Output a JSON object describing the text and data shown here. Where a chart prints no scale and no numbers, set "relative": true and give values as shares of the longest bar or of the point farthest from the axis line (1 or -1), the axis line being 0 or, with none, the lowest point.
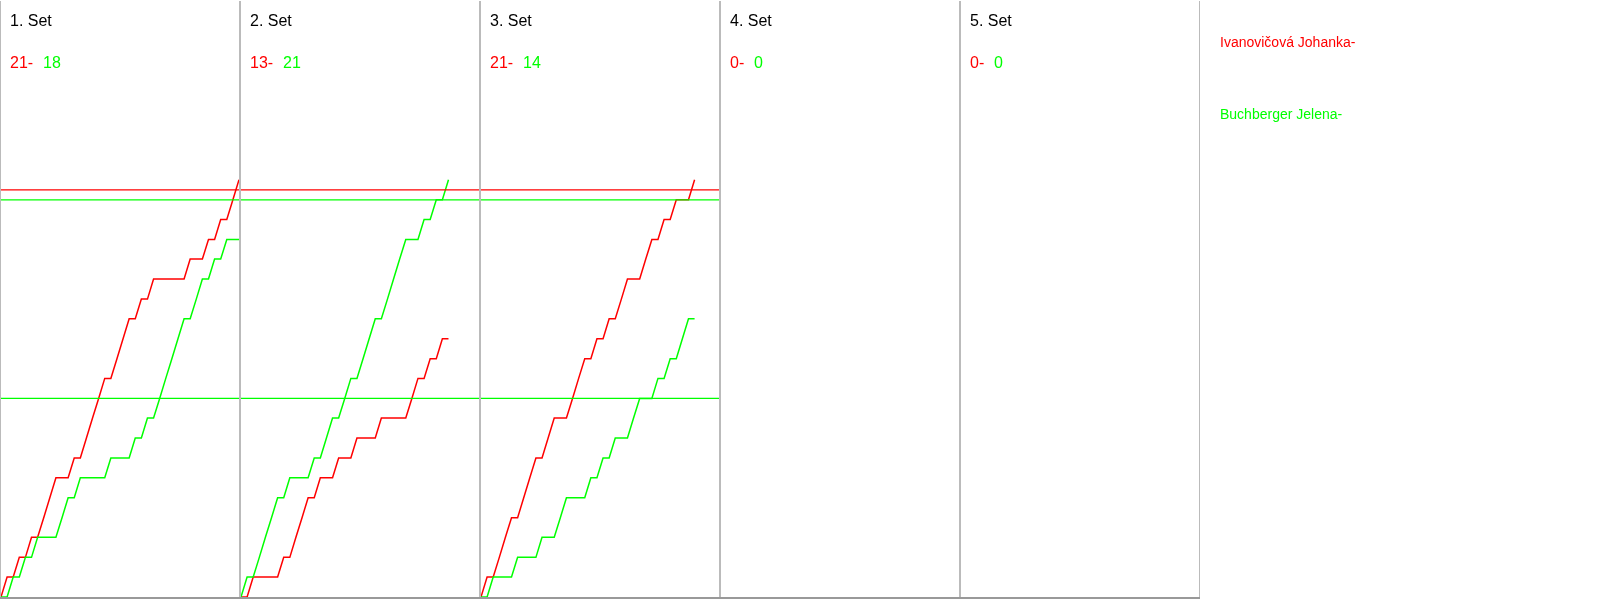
{
  "chart_data": [
    {
      "type": "line",
      "title": "1. Set",
      "annotations": [
        "21-",
        "18"
      ],
      "relative": true,
      "categories": [
        null,
        null,
        null,
        null,
        null,
        null,
        null,
        null,
        null,
        null,
        null,
        null,
        null,
        null,
        null,
        null,
        null,
        null,
        null,
        null,
        null,
        null,
        null,
        null,
        null,
        null,
        null,
        null,
        null,
        null,
        null,
        null,
        null,
        null,
        null,
        null,
        null,
        null,
        null,
        null
      ],
      "ref_lines": [
        {
          "axis": "y",
          "value": 0.976,
          "color": "#ff0000"
        },
        {
          "axis": "y",
          "value": 0.952,
          "color": "#00ff00"
        },
        {
          "axis": "y",
          "value": 0.476,
          "color": "#00ff00"
        }
      ],
      "series": [
        {
          "name": "Ivanovičová Johanka-",
          "color": "#ff0000",
          "values": [
            0,
            0.048,
            0.048,
            0.095,
            0.095,
            0.143,
            0.143,
            0.19,
            0.238,
            0.286,
            0.286,
            0.286,
            0.333,
            0.333,
            0.381,
            0.429,
            0.476,
            0.524,
            0.524,
            0.571,
            0.619,
            0.667,
            0.667,
            0.714,
            0.714,
            0.762,
            0.762,
            0.762,
            0.762,
            0.762,
            0.762,
            0.81,
            0.81,
            0.81,
            0.857,
            0.857,
            0.905,
            0.905,
            0.952,
            1
          ]
        },
        {
          "name": "Buchberger Jelena-",
          "color": "#00ff00",
          "values": [
            0,
            0,
            0.048,
            0.048,
            0.095,
            0.095,
            0.143,
            0.143,
            0.143,
            0.143,
            0.19,
            0.238,
            0.238,
            0.286,
            0.286,
            0.286,
            0.286,
            0.286,
            0.333,
            0.333,
            0.333,
            0.333,
            0.381,
            0.381,
            0.429,
            0.429,
            0.476,
            0.524,
            0.571,
            0.619,
            0.667,
            0.667,
            0.714,
            0.762,
            0.762,
            0.81,
            0.81,
            0.857,
            0.857,
            0.857
          ]
        }
      ]
    },
    {
      "type": "line",
      "title": "2. Set",
      "annotations": [
        "13-",
        "21"
      ],
      "relative": true,
      "categories": [
        null,
        null,
        null,
        null,
        null,
        null,
        null,
        null,
        null,
        null,
        null,
        null,
        null,
        null,
        null,
        null,
        null,
        null,
        null,
        null,
        null,
        null,
        null,
        null,
        null,
        null,
        null,
        null,
        null,
        null,
        null,
        null,
        null,
        null,
        null,
        null,
        null,
        null,
        null,
        null
      ],
      "ref_lines": [
        {
          "axis": "y",
          "value": 0.976,
          "color": "#ff0000"
        },
        {
          "axis": "y",
          "value": 0.952,
          "color": "#00ff00"
        },
        {
          "axis": "y",
          "value": 0.476,
          "color": "#00ff00"
        }
      ],
      "series": [
        {
          "color": "#ff0000",
          "values": [
            0,
            0,
            0.048,
            0.048,
            0.048,
            0.048,
            0.048,
            0.095,
            0.095,
            0.143,
            0.19,
            0.238,
            0.238,
            0.286,
            0.286,
            0.286,
            0.333,
            0.333,
            0.333,
            0.381,
            0.381,
            0.381,
            0.381,
            0.429,
            0.429,
            0.429,
            0.429,
            0.429,
            0.476,
            0.524,
            0.524,
            0.571,
            0.571,
            0.619,
            0.619,
            null,
            null,
            null,
            null,
            null
          ]
        },
        {
          "color": "#00ff00",
          "values": [
            0,
            0.048,
            0.048,
            0.095,
            0.143,
            0.19,
            0.238,
            0.238,
            0.286,
            0.286,
            0.286,
            0.286,
            0.333,
            0.333,
            0.381,
            0.429,
            0.429,
            0.476,
            0.524,
            0.524,
            0.571,
            0.619,
            0.667,
            0.667,
            0.714,
            0.762,
            0.81,
            0.857,
            0.857,
            0.857,
            0.905,
            0.905,
            0.952,
            0.952,
            1,
            null,
            null,
            null,
            null,
            null
          ]
        }
      ]
    },
    {
      "type": "line",
      "title": "3. Set",
      "annotations": [
        "21-",
        "14"
      ],
      "relative": true,
      "categories": [
        null,
        null,
        null,
        null,
        null,
        null,
        null,
        null,
        null,
        null,
        null,
        null,
        null,
        null,
        null,
        null,
        null,
        null,
        null,
        null,
        null,
        null,
        null,
        null,
        null,
        null,
        null,
        null,
        null,
        null,
        null,
        null,
        null,
        null,
        null,
        null,
        null,
        null,
        null,
        null
      ],
      "ref_lines": [
        {
          "axis": "y",
          "value": 0.976,
          "color": "#ff0000"
        },
        {
          "axis": "y",
          "value": 0.952,
          "color": "#00ff00"
        },
        {
          "axis": "y",
          "value": 0.476,
          "color": "#00ff00"
        }
      ],
      "series": [
        {
          "color": "#ff0000",
          "values": [
            0,
            0.048,
            0.048,
            0.095,
            0.143,
            0.19,
            0.19,
            0.238,
            0.286,
            0.333,
            0.333,
            0.381,
            0.429,
            0.429,
            0.429,
            0.476,
            0.524,
            0.571,
            0.571,
            0.619,
            0.619,
            0.667,
            0.667,
            0.714,
            0.762,
            0.762,
            0.762,
            0.81,
            0.857,
            0.857,
            0.905,
            0.905,
            0.952,
            0.952,
            0.952,
            1,
            null,
            null,
            null,
            null
          ]
        },
        {
          "color": "#00ff00",
          "values": [
            0,
            0,
            0.048,
            0.048,
            0.048,
            0.048,
            0.095,
            0.095,
            0.095,
            0.095,
            0.143,
            0.143,
            0.143,
            0.19,
            0.238,
            0.238,
            0.238,
            0.238,
            0.286,
            0.286,
            0.333,
            0.333,
            0.381,
            0.381,
            0.381,
            0.429,
            0.476,
            0.476,
            0.476,
            0.524,
            0.524,
            0.571,
            0.571,
            0.619,
            0.667,
            0.667,
            null,
            null,
            null,
            null
          ]
        }
      ]
    },
    {
      "type": "other",
      "title": "4. Set",
      "annotations": [
        "0-",
        "0"
      ]
    },
    {
      "type": "other",
      "title": "5. Set",
      "annotations": [
        "0-",
        "0"
      ]
    }
  ]
}
